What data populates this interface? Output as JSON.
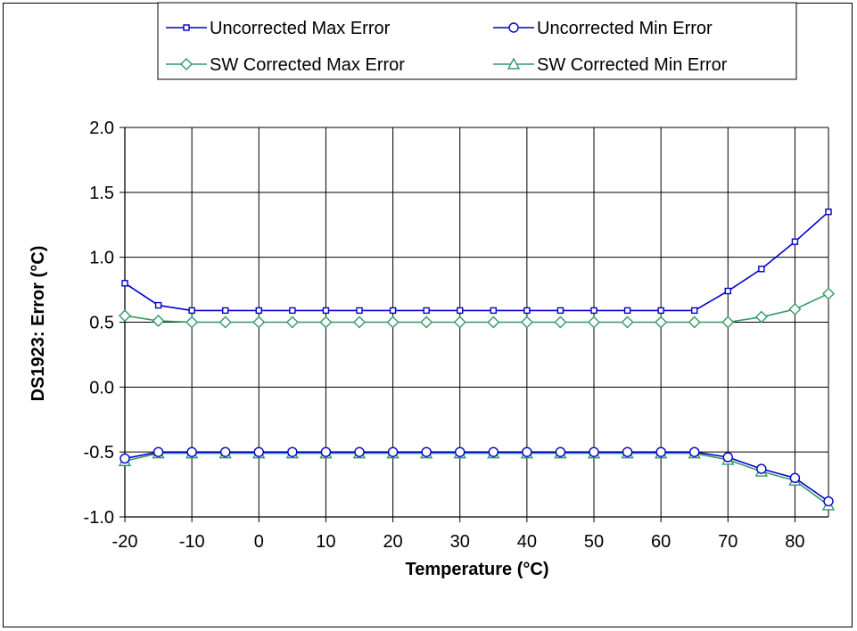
{
  "chart_data": {
    "type": "line",
    "title": "",
    "xlabel": "Temperature (°C)",
    "ylabel": "DS1923: Error (°C)",
    "xlim": [
      -20,
      85
    ],
    "ylim": [
      -1.0,
      2.0
    ],
    "xticks": [
      "-20",
      "-10",
      "0",
      "10",
      "20",
      "30",
      "40",
      "50",
      "60",
      "70",
      "80"
    ],
    "yticks": [
      "-1.0",
      "-0.5",
      "0.0",
      "0.5",
      "1.0",
      "1.5",
      "2.0"
    ],
    "grid": true,
    "legend_position": "top",
    "x": [
      -20,
      -15,
      -10,
      -5,
      0,
      5,
      10,
      15,
      20,
      25,
      30,
      35,
      40,
      45,
      50,
      55,
      60,
      65,
      70,
      75,
      80,
      85
    ],
    "series": [
      {
        "name": "Uncorrected Max Error",
        "color": "#0000cc",
        "marker": "square",
        "values": [
          0.8,
          0.63,
          0.59,
          0.59,
          0.59,
          0.59,
          0.59,
          0.59,
          0.59,
          0.59,
          0.59,
          0.59,
          0.59,
          0.59,
          0.59,
          0.59,
          0.59,
          0.59,
          0.74,
          0.91,
          1.12,
          1.35
        ]
      },
      {
        "name": "Uncorrected Min Error",
        "color": "#0000cc",
        "marker": "circle",
        "values": [
          -0.55,
          -0.5,
          -0.5,
          -0.5,
          -0.5,
          -0.5,
          -0.5,
          -0.5,
          -0.5,
          -0.5,
          -0.5,
          -0.5,
          -0.5,
          -0.5,
          -0.5,
          -0.5,
          -0.5,
          -0.5,
          -0.54,
          -0.63,
          -0.7,
          -0.88
        ]
      },
      {
        "name": "SW Corrected Max Error",
        "color": "#339966",
        "marker": "diamond",
        "values": [
          0.55,
          0.51,
          0.5,
          0.5,
          0.5,
          0.5,
          0.5,
          0.5,
          0.5,
          0.5,
          0.5,
          0.5,
          0.5,
          0.5,
          0.5,
          0.5,
          0.5,
          0.5,
          0.5,
          0.54,
          0.6,
          0.72
        ]
      },
      {
        "name": "SW Corrected Min Error",
        "color": "#339966",
        "marker": "triangle",
        "values": [
          -0.57,
          -0.51,
          -0.51,
          -0.51,
          -0.51,
          -0.51,
          -0.51,
          -0.51,
          -0.51,
          -0.51,
          -0.51,
          -0.51,
          -0.51,
          -0.51,
          -0.51,
          -0.51,
          -0.51,
          -0.51,
          -0.56,
          -0.65,
          -0.72,
          -0.91
        ]
      }
    ]
  }
}
